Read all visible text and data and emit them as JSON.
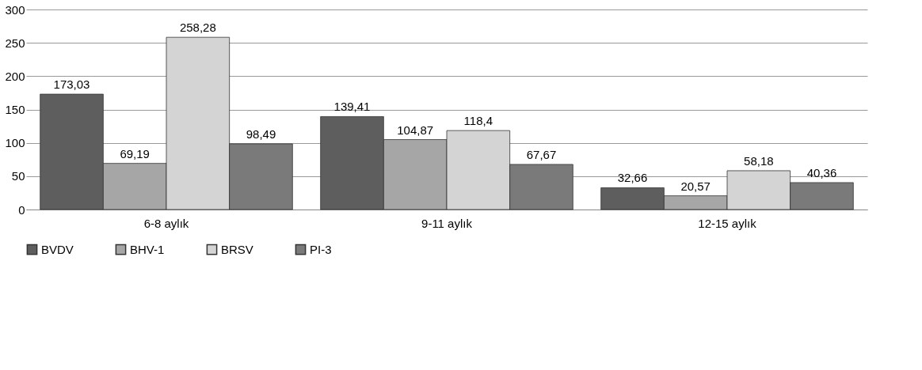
{
  "chart_data": {
    "type": "bar",
    "categories": [
      "6-8 aylık",
      "9-11 aylık",
      "12-15 aylık"
    ],
    "series": [
      {
        "name": "BVDV",
        "color": "#5e5e5e",
        "values": [
          173.03,
          139.41,
          32.66
        ],
        "value_labels": [
          "173,03",
          "139,41",
          "32,66"
        ]
      },
      {
        "name": "BHV-1",
        "color": "#a6a6a6",
        "values": [
          69.19,
          104.87,
          20.57
        ],
        "value_labels": [
          "69,19",
          "104,87",
          "20,57"
        ]
      },
      {
        "name": "BRSV",
        "color": "#d4d4d4",
        "values": [
          258.28,
          118.4,
          58.18
        ],
        "value_labels": [
          "258,28",
          "118,4",
          "58,18"
        ]
      },
      {
        "name": "PI-3",
        "color": "#7a7a7a",
        "values": [
          98.49,
          67.67,
          40.36
        ],
        "value_labels": [
          "98,49",
          "67,67",
          "40,36"
        ]
      }
    ],
    "ylim": [
      0,
      300
    ],
    "yticks": [
      0,
      50,
      100,
      150,
      200,
      250,
      300
    ],
    "grid": "y",
    "legend": "bottom"
  }
}
